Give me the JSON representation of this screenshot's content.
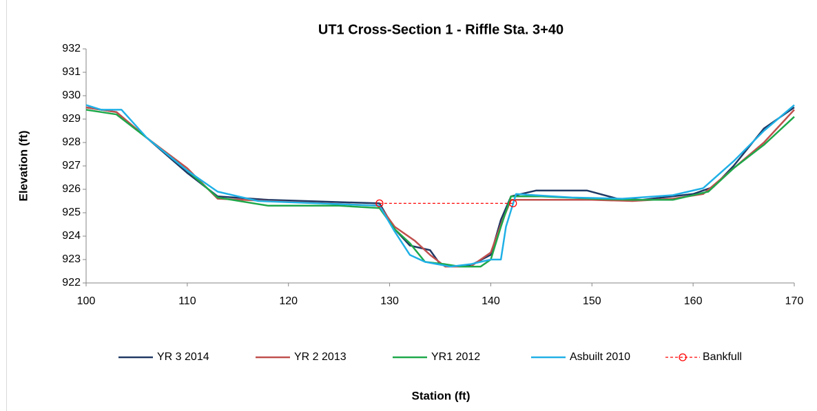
{
  "chart_data": {
    "type": "line",
    "title": "UT1 Cross-Section 1 - Riffle Sta. 3+40",
    "xlabel": "Station (ft)",
    "ylabel": "Elevation (ft)",
    "xlim": [
      100,
      170
    ],
    "xticks": [
      100,
      110,
      120,
      130,
      140,
      150,
      160,
      170
    ],
    "ylim": [
      922,
      932
    ],
    "yticks": [
      922,
      923,
      924,
      925,
      926,
      927,
      928,
      929,
      930,
      931,
      932
    ],
    "grid": false,
    "legend": "bottom",
    "series": [
      {
        "name": "YR 3 2014",
        "color": "#1f3864",
        "dashed": false,
        "x": [
          100,
          103,
          106,
          110,
          113,
          118,
          129,
          130.5,
          132,
          134,
          135,
          136,
          138,
          140,
          141,
          142,
          144.5,
          149.5,
          152.5,
          155,
          160,
          162,
          164,
          167,
          170
        ],
        "values": [
          929.5,
          929.3,
          928.2,
          926.7,
          925.7,
          925.55,
          925.4,
          924.3,
          923.6,
          923.4,
          922.8,
          922.7,
          922.75,
          923.2,
          924.7,
          925.7,
          925.95,
          925.95,
          925.6,
          925.55,
          925.8,
          926.1,
          927.0,
          928.6,
          929.5
        ]
      },
      {
        "name": "YR 2 2013",
        "color": "#c0504d",
        "dashed": false,
        "x": [
          100,
          103,
          106,
          110,
          113,
          118,
          129,
          130.5,
          132.5,
          134,
          135.5,
          138,
          140,
          141,
          142,
          145,
          150,
          154,
          158,
          161,
          164,
          167,
          170
        ],
        "values": [
          929.5,
          929.3,
          928.2,
          926.9,
          925.6,
          925.5,
          925.3,
          924.4,
          923.8,
          923.2,
          922.7,
          922.7,
          923.3,
          924.5,
          925.55,
          925.55,
          925.55,
          925.5,
          925.6,
          925.8,
          926.9,
          928.0,
          929.4
        ]
      },
      {
        "name": "YR1 2012",
        "color": "#1ea84a",
        "dashed": false,
        "x": [
          100,
          103,
          106,
          110,
          113,
          118,
          125,
          129,
          130.5,
          132,
          133.5,
          135.5,
          137,
          139,
          140,
          141,
          142,
          145,
          150,
          154,
          158,
          161.5,
          164,
          167,
          170
        ],
        "values": [
          929.4,
          929.2,
          928.2,
          926.8,
          925.65,
          925.3,
          925.3,
          925.2,
          924.3,
          923.7,
          922.9,
          922.8,
          922.7,
          922.7,
          923.0,
          924.4,
          925.7,
          925.7,
          925.6,
          925.55,
          925.55,
          925.9,
          926.9,
          927.9,
          929.1
        ]
      },
      {
        "name": "Asbuilt 2010",
        "color": "#1fb0e6",
        "dashed": false,
        "x": [
          100,
          101.5,
          103.5,
          106,
          110,
          113,
          117,
          123,
          129,
          130.5,
          132,
          133.5,
          136,
          138,
          140,
          141,
          141.5,
          142.5,
          148,
          153,
          158,
          161,
          164,
          167,
          170
        ],
        "values": [
          929.6,
          929.4,
          929.4,
          928.2,
          926.8,
          925.9,
          925.5,
          925.4,
          925.3,
          924.2,
          923.2,
          922.9,
          922.7,
          922.8,
          923.0,
          923.0,
          924.4,
          925.8,
          925.65,
          925.6,
          925.75,
          926.05,
          927.2,
          928.5,
          929.6
        ]
      },
      {
        "name": "Bankfull",
        "color": "#ff0000",
        "dashed": true,
        "x": [
          129,
          142.2
        ],
        "values": [
          925.4,
          925.4
        ]
      }
    ]
  }
}
